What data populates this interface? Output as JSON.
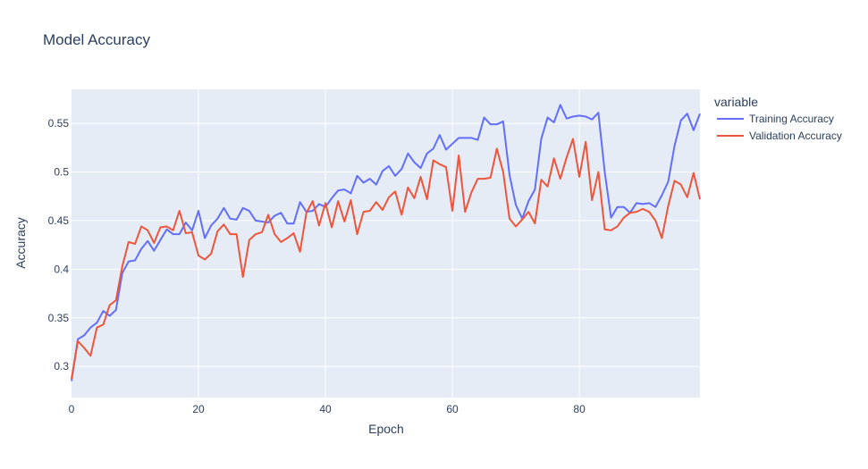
{
  "chart_data": {
    "type": "line",
    "title": "Model Accuracy",
    "xlabel": "Epoch",
    "ylabel": "Accuracy",
    "xlim": [
      0,
      99
    ],
    "ylim": [
      0.268,
      0.585
    ],
    "x_ticks": [
      0,
      20,
      40,
      60,
      80
    ],
    "y_ticks": [
      0.3,
      0.35,
      0.4,
      0.45,
      0.5,
      0.55
    ],
    "y_tick_labels": [
      "0.3",
      "0.35",
      "0.4",
      "0.45",
      "0.5",
      "0.55"
    ],
    "grid": true,
    "legend_title": "variable",
    "legend_position": "right",
    "plot_background": "#e5ecf6",
    "series": [
      {
        "name": "Training Accuracy",
        "color": "#636efa",
        "values": [
          0.285,
          0.328,
          0.332,
          0.34,
          0.345,
          0.357,
          0.352,
          0.358,
          0.396,
          0.408,
          0.409,
          0.421,
          0.429,
          0.419,
          0.43,
          0.441,
          0.436,
          0.436,
          0.448,
          0.44,
          0.46,
          0.432,
          0.445,
          0.452,
          0.463,
          0.452,
          0.451,
          0.463,
          0.46,
          0.45,
          0.449,
          0.448,
          0.455,
          0.458,
          0.447,
          0.447,
          0.469,
          0.459,
          0.46,
          0.467,
          0.464,
          0.473,
          0.481,
          0.482,
          0.478,
          0.496,
          0.489,
          0.493,
          0.487,
          0.501,
          0.506,
          0.496,
          0.503,
          0.519,
          0.51,
          0.504,
          0.519,
          0.524,
          0.538,
          0.523,
          0.529,
          0.535,
          0.535,
          0.535,
          0.533,
          0.556,
          0.549,
          0.549,
          0.552,
          0.497,
          0.466,
          0.452,
          0.47,
          0.482,
          0.534,
          0.556,
          0.551,
          0.569,
          0.555,
          0.557,
          0.558,
          0.557,
          0.554,
          0.561,
          0.5,
          0.453,
          0.464,
          0.464,
          0.458,
          0.468,
          0.467,
          0.468,
          0.464,
          0.476,
          0.49,
          0.527,
          0.553,
          0.56,
          0.543,
          0.56
        ]
      },
      {
        "name": "Validation Accuracy",
        "color": "#ef553b",
        "values": [
          0.287,
          0.326,
          0.319,
          0.311,
          0.34,
          0.343,
          0.363,
          0.368,
          0.403,
          0.428,
          0.426,
          0.444,
          0.44,
          0.427,
          0.443,
          0.444,
          0.44,
          0.46,
          0.437,
          0.438,
          0.414,
          0.41,
          0.416,
          0.439,
          0.446,
          0.436,
          0.436,
          0.392,
          0.43,
          0.436,
          0.438,
          0.456,
          0.436,
          0.428,
          0.432,
          0.437,
          0.418,
          0.458,
          0.47,
          0.445,
          0.468,
          0.443,
          0.47,
          0.449,
          0.471,
          0.436,
          0.459,
          0.46,
          0.469,
          0.461,
          0.474,
          0.48,
          0.456,
          0.484,
          0.473,
          0.495,
          0.472,
          0.512,
          0.508,
          0.505,
          0.46,
          0.517,
          0.459,
          0.479,
          0.493,
          0.493,
          0.494,
          0.524,
          0.5,
          0.452,
          0.444,
          0.451,
          0.459,
          0.447,
          0.492,
          0.485,
          0.514,
          0.493,
          0.515,
          0.534,
          0.495,
          0.531,
          0.471,
          0.5,
          0.441,
          0.44,
          0.444,
          0.453,
          0.458,
          0.459,
          0.462,
          0.459,
          0.45,
          0.432,
          0.465,
          0.491,
          0.487,
          0.474,
          0.499,
          0.472
        ]
      }
    ]
  }
}
